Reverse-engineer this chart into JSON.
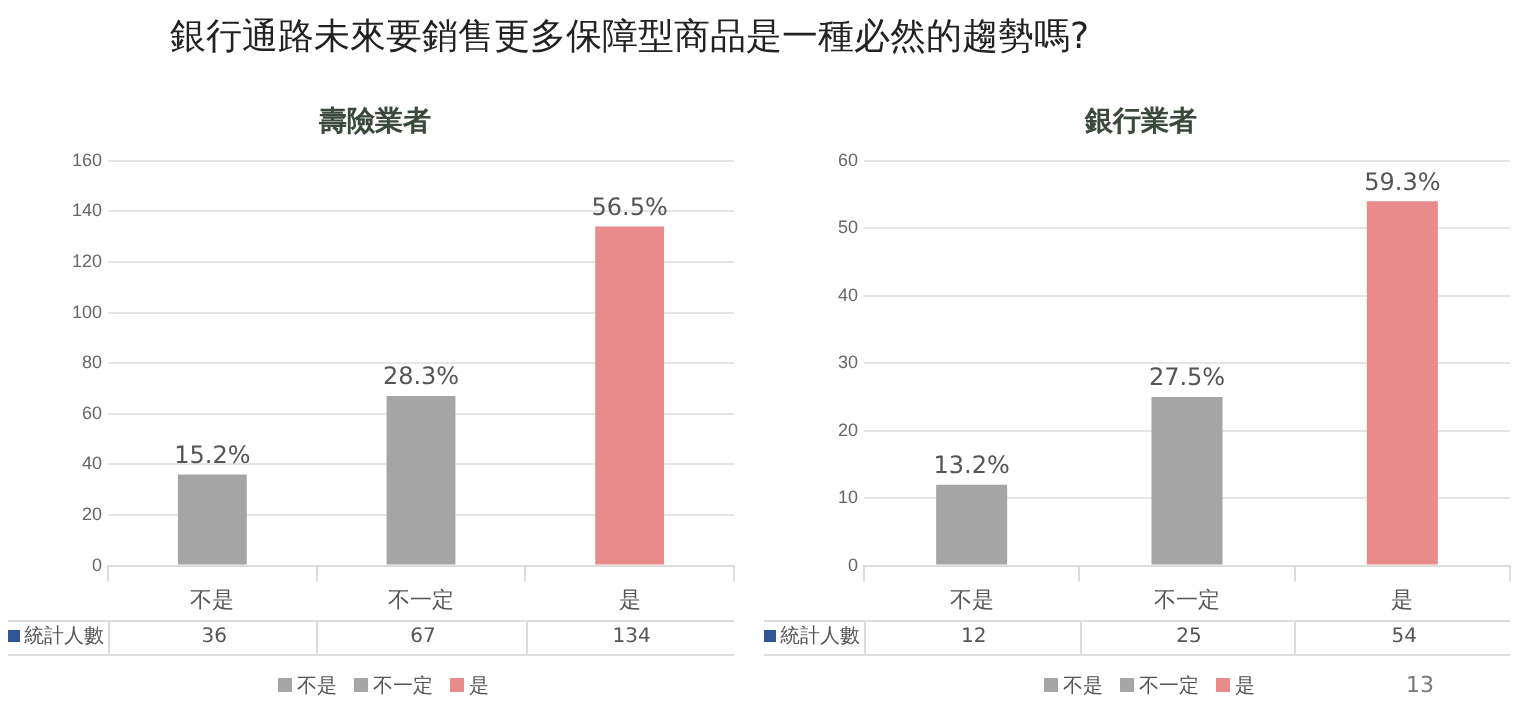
{
  "chart_data": [
    {
      "type": "bar",
      "title": "壽險業者",
      "annotations": [
        "銀行通路未來要銷售更多保障型商品是一種必然的趨勢嗎?",
        {
          "text": "15.2%",
          "x": "不是",
          "y": 36
        },
        {
          "text": "28.3%",
          "x": "不一定",
          "y": 67
        },
        {
          "text": "56.5%",
          "x": "是",
          "y": 134
        }
      ],
      "categories": [
        "不是",
        "不一定",
        "是"
      ],
      "series": [
        {
          "name": "統計人數",
          "color": "#2f5597",
          "colors": [
            "#a5a5a5",
            "#a5a5a5",
            "#e98b8a"
          ],
          "values": [
            36,
            67,
            134
          ]
        }
      ],
      "ylim": [
        0,
        160
      ],
      "yticks": [
        0,
        20,
        40,
        60,
        80,
        100,
        120,
        140,
        160
      ],
      "grid": "y",
      "data_labels": true
    },
    {
      "type": "bar",
      "title": "銀行業者",
      "annotations": [
        "13",
        {
          "text": "13.2%",
          "x": "不是",
          "y": 12
        },
        {
          "text": "27.5%",
          "x": "不一定",
          "y": 25
        },
        {
          "text": "59.3%",
          "x": "是",
          "y": 54
        }
      ],
      "categories": [
        "不是",
        "不一定",
        "是"
      ],
      "series": [
        {
          "name": "統計人數",
          "color": "#2f5597",
          "colors": [
            "#a5a5a5",
            "#a5a5a5",
            "#e98b8a"
          ],
          "values": [
            12,
            25,
            54
          ]
        }
      ],
      "ylim": [
        0,
        60
      ],
      "yticks": [
        0,
        10,
        20,
        30,
        40,
        50,
        60
      ],
      "grid": "y",
      "data_labels": true
    }
  ]
}
